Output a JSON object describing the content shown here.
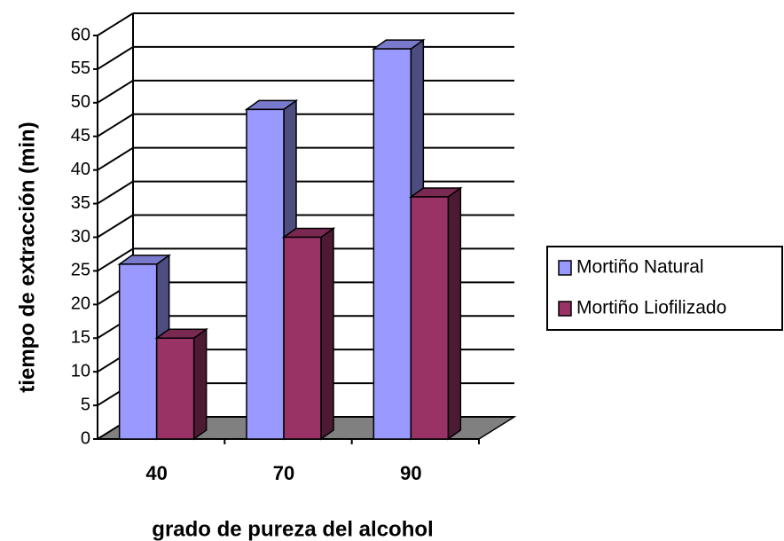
{
  "chart_data": {
    "type": "bar3d",
    "xlabel": "grado de pureza del alcohol",
    "ylabel": "tiempo de extracción (min)",
    "categories": [
      "40",
      "70",
      "90"
    ],
    "series": [
      {
        "name": "Mortiño Natural",
        "color": "#9999ff",
        "values": [
          26,
          49,
          58
        ]
      },
      {
        "name": "Mortiño Liofilizado",
        "color": "#993366",
        "values": [
          15,
          30,
          36
        ]
      }
    ],
    "ylim": [
      0,
      60
    ],
    "yticks": [
      0,
      5,
      10,
      15,
      20,
      25,
      30,
      35,
      40,
      45,
      50,
      55,
      60
    ],
    "grid": true,
    "legend": "right"
  }
}
